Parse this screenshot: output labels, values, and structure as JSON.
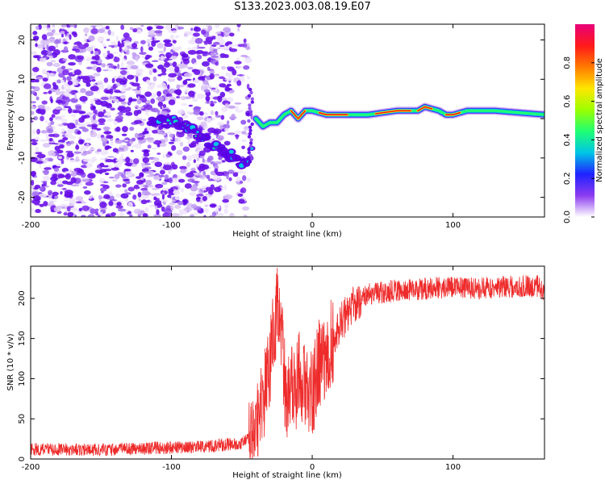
{
  "title": "S133.2023.003.08.19.E07",
  "colors": {
    "snr_line": "#ee2b2b",
    "cmap": [
      "#f7f3ff",
      "#c9a6f2",
      "#8c3cf0",
      "#5a00e6",
      "#1f22ff",
      "#00c6e6",
      "#1fff73",
      "#9bff00",
      "#ffe600",
      "#ff7a00",
      "#ff1a1a",
      "#e8007a"
    ]
  },
  "chart_data": [
    {
      "type": "heatmap",
      "xlabel": "Height of straight line (km)",
      "ylabel": "Frequency (Hz)",
      "xlim": [
        -200,
        165
      ],
      "ylim": [
        -25,
        24
      ],
      "xticks": [
        -200,
        -100,
        0,
        100
      ],
      "yticks": [
        -20,
        -10,
        0,
        10,
        20
      ],
      "colorbar": {
        "label": "Normalized spectral amplitude",
        "range": [
          0,
          1
        ],
        "ticks": [
          "0.0",
          "0.2",
          "0.4",
          "0.6",
          "0.8"
        ]
      },
      "frequency_trace": {
        "x": [
          -115,
          -105,
          -95,
          -85,
          -75,
          -65,
          -60,
          -55,
          -50,
          -45,
          -40,
          -35,
          -30,
          -25,
          -20,
          -15,
          -10,
          -5,
          0,
          10,
          20,
          40,
          60,
          75,
          80,
          90,
          95,
          100,
          110,
          130,
          165
        ],
        "y": [
          0,
          -1,
          -1,
          -3,
          -6,
          -8,
          -9,
          -10,
          -11,
          -11,
          0,
          -2,
          -1,
          -1,
          1,
          2,
          0,
          2,
          2,
          1,
          1,
          1,
          2,
          2,
          3,
          2,
          1,
          1,
          2,
          2,
          1
        ]
      }
    },
    {
      "type": "line",
      "xlabel": "Height of straight line (km)",
      "ylabel": "SNR (10 * v/v)",
      "xlim": [
        -200,
        165
      ],
      "ylim": [
        0,
        240
      ],
      "xticks": [
        -200,
        -100,
        0,
        100
      ],
      "yticks": [
        0,
        50,
        100,
        150,
        200
      ],
      "series": [
        {
          "x": [
            -200,
            -180,
            -160,
            -140,
            -120,
            -100,
            -80,
            -60,
            -50,
            -45,
            -40,
            -35,
            -30,
            -27,
            -25,
            -22,
            -20,
            -18,
            -15,
            -12,
            -10,
            -5,
            0,
            5,
            10,
            15,
            20,
            25,
            30,
            40,
            60,
            80,
            100,
            120,
            140,
            160,
            165
          ],
          "y": [
            12,
            12,
            12,
            12,
            13,
            14,
            15,
            18,
            20,
            25,
            40,
            70,
            120,
            160,
            190,
            150,
            110,
            60,
            100,
            70,
            110,
            90,
            80,
            120,
            130,
            150,
            170,
            180,
            195,
            205,
            210,
            212,
            215,
            212,
            215,
            215,
            210
          ]
        }
      ]
    }
  ]
}
